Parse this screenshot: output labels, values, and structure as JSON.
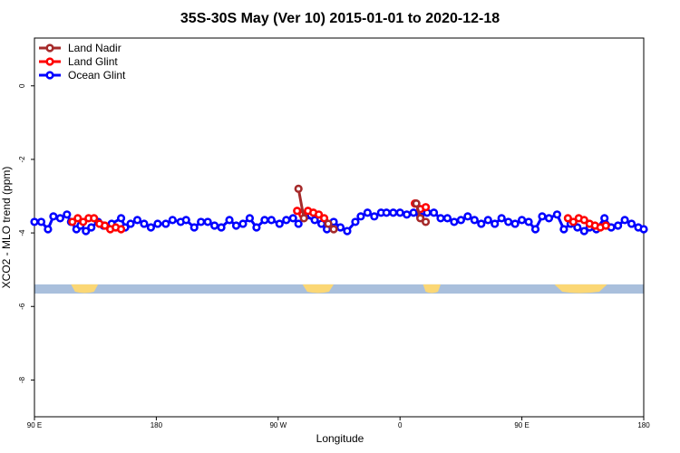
{
  "chart_data": {
    "type": "line",
    "title": "35S-30S May (Ver 10)   2015-01-01 to 2020-12-18",
    "xlabel": "Longitude",
    "ylabel": "XCO2 - MLO trend (ppm)",
    "x_axis_mode": "longitude shifted by 90 degrees (90E at left edge, through 180, 90W, 0, 90E, to 180)",
    "xlim": [
      90,
      540
    ],
    "ylim": [
      -9.0,
      1.3
    ],
    "x_ticks": [
      {
        "value": 90,
        "label": "90 E"
      },
      {
        "value": 180,
        "label": "180"
      },
      {
        "value": 270,
        "label": "90 W"
      },
      {
        "value": 360,
        "label": "0"
      },
      {
        "value": 450,
        "label": "90 E"
      },
      {
        "value": 540,
        "label": "180"
      }
    ],
    "y_ticks": [
      {
        "value": 0,
        "label": "0"
      },
      {
        "value": -2,
        "label": "-2"
      },
      {
        "value": -4,
        "label": "-4"
      },
      {
        "value": -6,
        "label": "-6"
      },
      {
        "value": -8,
        "label": "-8"
      }
    ],
    "land_strip": {
      "y_top": -5.4,
      "y_bottom": -5.65,
      "ocean_color": "#a9bfdc",
      "land_color": "#fbd775",
      "land_segments": [
        [
          117,
          137
        ],
        [
          288,
          311
        ],
        [
          377,
          390
        ],
        [
          474,
          513
        ]
      ]
    },
    "legend": {
      "position": "top-left",
      "entries": [
        "Land Nadir",
        "Land Glint",
        "Ocean Glint"
      ]
    },
    "series": [
      {
        "name": "Land Nadir",
        "color": "#a52a2a",
        "x": [
          285,
          289,
          307,
          311,
          372,
          375,
          379
        ],
        "y": [
          -2.8,
          -3.6,
          -3.75,
          -3.9,
          -3.2,
          -3.6,
          -3.7
        ]
      },
      {
        "name": "Land Glint",
        "color": "#ff0000",
        "x": [
          118,
          122,
          126,
          130,
          134,
          138,
          142,
          146,
          150,
          154,
          284,
          288,
          292,
          296,
          300,
          304,
          371,
          375,
          379,
          484,
          488,
          492,
          496,
          500,
          504,
          508,
          512
        ],
        "y": [
          -3.7,
          -3.6,
          -3.7,
          -3.6,
          -3.6,
          -3.75,
          -3.8,
          -3.9,
          -3.85,
          -3.9,
          -3.4,
          -3.5,
          -3.4,
          -3.45,
          -3.5,
          -3.6,
          -3.2,
          -3.35,
          -3.3,
          -3.6,
          -3.7,
          -3.6,
          -3.65,
          -3.75,
          -3.8,
          -3.85,
          -3.8
        ]
      },
      {
        "name": "Ocean Glint",
        "color": "#0000ff",
        "x": [
          90,
          95,
          100,
          104,
          109,
          114,
          117,
          121,
          124,
          128,
          132,
          137,
          141,
          147,
          154,
          157,
          161,
          166,
          171,
          176,
          181,
          187,
          192,
          198,
          202,
          208,
          213,
          218,
          223,
          228,
          234,
          239,
          244,
          249,
          254,
          260,
          265,
          271,
          276,
          281,
          285,
          290,
          297,
          302,
          306,
          311,
          316,
          321,
          327,
          331,
          336,
          341,
          346,
          350,
          355,
          360,
          365,
          370,
          375,
          380,
          385,
          390,
          395,
          400,
          405,
          410,
          415,
          420,
          425,
          430,
          435,
          440,
          445,
          450,
          455,
          460,
          465,
          470,
          476,
          481,
          486,
          491,
          496,
          500,
          505,
          511,
          516,
          521,
          526,
          531,
          536,
          540
        ],
        "y": [
          -3.7,
          -3.7,
          -3.9,
          -3.55,
          -3.6,
          -3.5,
          -3.7,
          -3.9,
          -3.8,
          -3.95,
          -3.85,
          -3.7,
          -3.8,
          -3.75,
          -3.6,
          -3.85,
          -3.75,
          -3.65,
          -3.75,
          -3.85,
          -3.75,
          -3.75,
          -3.65,
          -3.7,
          -3.65,
          -3.85,
          -3.7,
          -3.7,
          -3.8,
          -3.85,
          -3.65,
          -3.8,
          -3.75,
          -3.6,
          -3.85,
          -3.65,
          -3.65,
          -3.75,
          -3.65,
          -3.6,
          -3.75,
          -3.55,
          -3.65,
          -3.75,
          -3.9,
          -3.7,
          -3.85,
          -3.95,
          -3.7,
          -3.55,
          -3.45,
          -3.55,
          -3.45,
          -3.45,
          -3.45,
          -3.45,
          -3.5,
          -3.45,
          -3.55,
          -3.45,
          -3.45,
          -3.6,
          -3.6,
          -3.7,
          -3.65,
          -3.55,
          -3.65,
          -3.75,
          -3.65,
          -3.75,
          -3.6,
          -3.7,
          -3.75,
          -3.65,
          -3.7,
          -3.9,
          -3.55,
          -3.6,
          -3.5,
          -3.9,
          -3.75,
          -3.85,
          -3.95,
          -3.85,
          -3.9,
          -3.6,
          -3.85,
          -3.8,
          -3.65,
          -3.75,
          -3.85,
          -3.9
        ]
      }
    ]
  }
}
